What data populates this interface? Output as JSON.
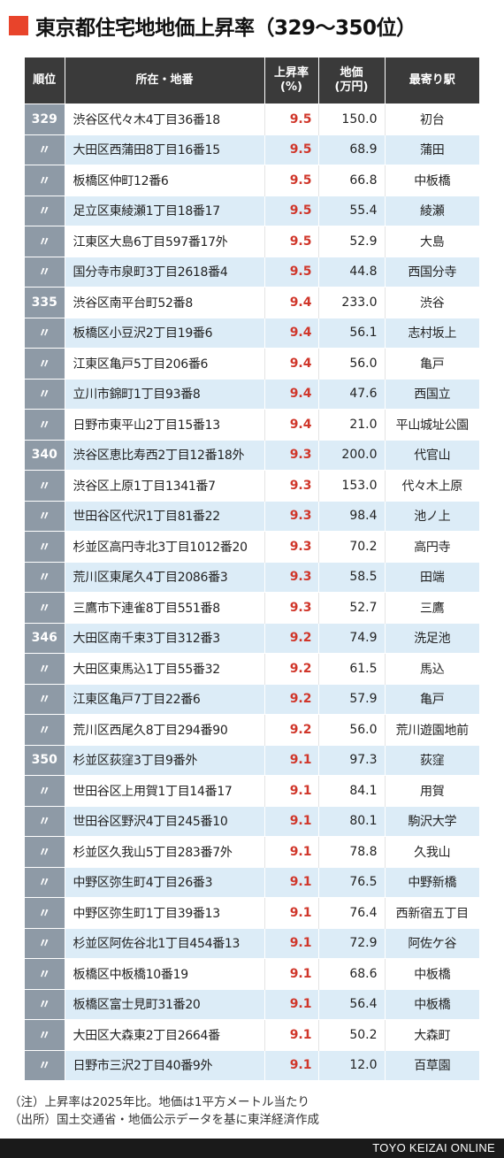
{
  "title": "東京都住宅地地価上昇率（329〜350位）",
  "headers": {
    "rank": "順位",
    "location": "所在・地番",
    "rate_line1": "上昇率",
    "rate_line2": "(%)",
    "price_line1": "地価",
    "price_line2": "(万円)",
    "station": "最寄り駅"
  },
  "rows": [
    {
      "rank": "329",
      "location": "渋谷区代々木4丁目36番18",
      "rate": "9.5",
      "price": "150.0",
      "station": "初台"
    },
    {
      "rank": "〃",
      "location": "大田区西蒲田8丁目16番15",
      "rate": "9.5",
      "price": "68.9",
      "station": "蒲田"
    },
    {
      "rank": "〃",
      "location": "板橋区仲町12番6",
      "rate": "9.5",
      "price": "66.8",
      "station": "中板橋"
    },
    {
      "rank": "〃",
      "location": "足立区東綾瀬1丁目18番17",
      "rate": "9.5",
      "price": "55.4",
      "station": "綾瀬"
    },
    {
      "rank": "〃",
      "location": "江東区大島6丁目597番17外",
      "rate": "9.5",
      "price": "52.9",
      "station": "大島"
    },
    {
      "rank": "〃",
      "location": "国分寺市泉町3丁目2618番4",
      "rate": "9.5",
      "price": "44.8",
      "station": "西国分寺"
    },
    {
      "rank": "335",
      "location": "渋谷区南平台町52番8",
      "rate": "9.4",
      "price": "233.0",
      "station": "渋谷"
    },
    {
      "rank": "〃",
      "location": "板橋区小豆沢2丁目19番6",
      "rate": "9.4",
      "price": "56.1",
      "station": "志村坂上"
    },
    {
      "rank": "〃",
      "location": "江東区亀戸5丁目206番6",
      "rate": "9.4",
      "price": "56.0",
      "station": "亀戸"
    },
    {
      "rank": "〃",
      "location": "立川市錦町1丁目93番8",
      "rate": "9.4",
      "price": "47.6",
      "station": "西国立"
    },
    {
      "rank": "〃",
      "location": "日野市東平山2丁目15番13",
      "rate": "9.4",
      "price": "21.0",
      "station": "平山城址公園"
    },
    {
      "rank": "340",
      "location": "渋谷区恵比寿西2丁目12番18外",
      "rate": "9.3",
      "price": "200.0",
      "station": "代官山"
    },
    {
      "rank": "〃",
      "location": "渋谷区上原1丁目1341番7",
      "rate": "9.3",
      "price": "153.0",
      "station": "代々木上原"
    },
    {
      "rank": "〃",
      "location": "世田谷区代沢1丁目81番22",
      "rate": "9.3",
      "price": "98.4",
      "station": "池ノ上"
    },
    {
      "rank": "〃",
      "location": "杉並区高円寺北3丁目1012番20",
      "rate": "9.3",
      "price": "70.2",
      "station": "高円寺"
    },
    {
      "rank": "〃",
      "location": "荒川区東尾久4丁目2086番3",
      "rate": "9.3",
      "price": "58.5",
      "station": "田端"
    },
    {
      "rank": "〃",
      "location": "三鷹市下連雀8丁目551番8",
      "rate": "9.3",
      "price": "52.7",
      "station": "三鷹"
    },
    {
      "rank": "346",
      "location": "大田区南千束3丁目312番3",
      "rate": "9.2",
      "price": "74.9",
      "station": "洗足池"
    },
    {
      "rank": "〃",
      "location": "大田区東馬込1丁目55番32",
      "rate": "9.2",
      "price": "61.5",
      "station": "馬込"
    },
    {
      "rank": "〃",
      "location": "江東区亀戸7丁目22番6",
      "rate": "9.2",
      "price": "57.9",
      "station": "亀戸"
    },
    {
      "rank": "〃",
      "location": "荒川区西尾久8丁目294番90",
      "rate": "9.2",
      "price": "56.0",
      "station": "荒川遊園地前"
    },
    {
      "rank": "350",
      "location": "杉並区荻窪3丁目9番外",
      "rate": "9.1",
      "price": "97.3",
      "station": "荻窪"
    },
    {
      "rank": "〃",
      "location": "世田谷区上用賀1丁目14番17",
      "rate": "9.1",
      "price": "84.1",
      "station": "用賀"
    },
    {
      "rank": "〃",
      "location": "世田谷区野沢4丁目245番10",
      "rate": "9.1",
      "price": "80.1",
      "station": "駒沢大学"
    },
    {
      "rank": "〃",
      "location": "杉並区久我山5丁目283番7外",
      "rate": "9.1",
      "price": "78.8",
      "station": "久我山"
    },
    {
      "rank": "〃",
      "location": "中野区弥生町4丁目26番3",
      "rate": "9.1",
      "price": "76.5",
      "station": "中野新橋"
    },
    {
      "rank": "〃",
      "location": "中野区弥生町1丁目39番13",
      "rate": "9.1",
      "price": "76.4",
      "station": "西新宿五丁目"
    },
    {
      "rank": "〃",
      "location": "杉並区阿佐谷北1丁目454番13",
      "rate": "9.1",
      "price": "72.9",
      "station": "阿佐ケ谷"
    },
    {
      "rank": "〃",
      "location": "板橋区中板橋10番19",
      "rate": "9.1",
      "price": "68.6",
      "station": "中板橋"
    },
    {
      "rank": "〃",
      "location": "板橋区富士見町31番20",
      "rate": "9.1",
      "price": "56.4",
      "station": "中板橋"
    },
    {
      "rank": "〃",
      "location": "大田区大森東2丁目2664番",
      "rate": "9.1",
      "price": "50.2",
      "station": "大森町"
    },
    {
      "rank": "〃",
      "location": "日野市三沢2丁目40番9外",
      "rate": "9.1",
      "price": "12.0",
      "station": "百草園"
    }
  ],
  "notes": {
    "note": "（注）上昇率は2025年比。地価は1平方メートル当たり",
    "source": "（出所）国土交通省・地価公示データを基に東洋経済作成"
  },
  "credit": "TOYO KEIZAI ONLINE",
  "colors": {
    "accent": "#e8442b",
    "header_bg": "#3a3a3a",
    "rank_bg": "#8e9aa6",
    "stripe_bg": "#dcecf7",
    "rate_text": "#d0362a"
  }
}
